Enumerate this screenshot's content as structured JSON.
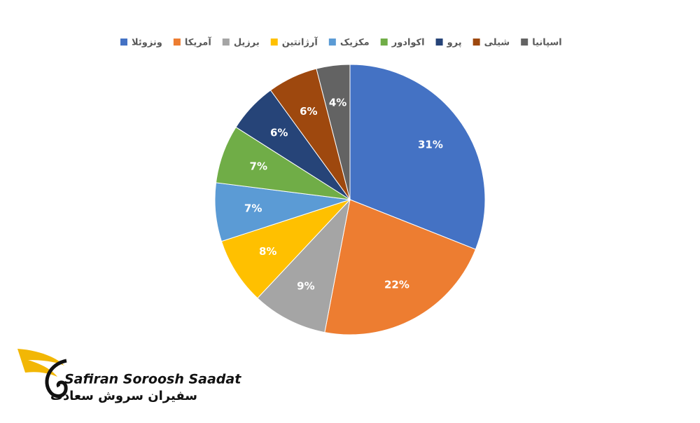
{
  "chart_data": {
    "type": "pie",
    "categories": [
      "ونزوئلا",
      "آمریکا",
      "برزیل",
      "آرژانتین",
      "مکزیک",
      "اکوادور",
      "پرو",
      "شیلی",
      "اسپانیا"
    ],
    "values": [
      31,
      22,
      9,
      8,
      7,
      7,
      6,
      6,
      4
    ],
    "value_labels": [
      "31%",
      "22%",
      "9%",
      "8%",
      "7%",
      "7%",
      "6%",
      "6%",
      "4%"
    ],
    "colors": [
      "#4472c4",
      "#ed7d31",
      "#a5a5a5",
      "#ffc000",
      "#5b9bd5",
      "#70ad47",
      "#264478",
      "#9e480e",
      "#636363"
    ],
    "legend": "top"
  },
  "logo": {
    "name_en": "Safiran Soroosh Saadat",
    "name_fa": "سفیران سروش سعادت"
  }
}
